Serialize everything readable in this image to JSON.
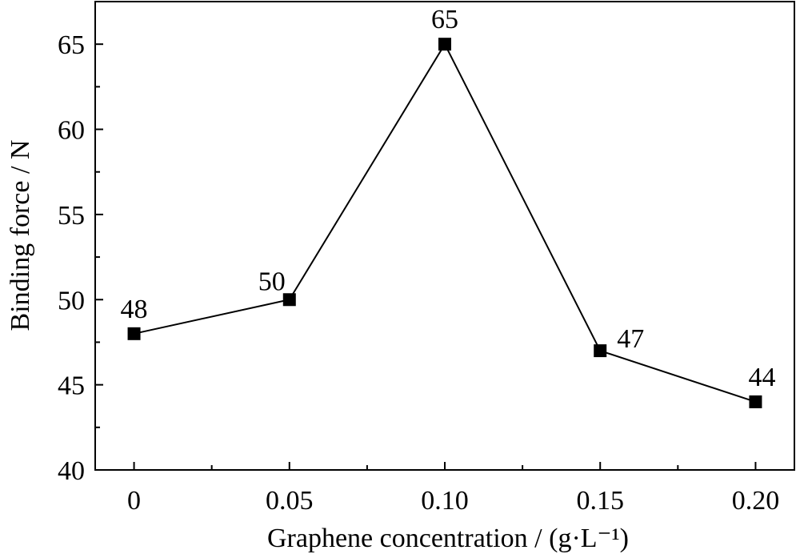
{
  "chart_data": {
    "type": "line",
    "title": "",
    "xlabel": "Graphene concentration / (g·L⁻¹)",
    "ylabel": "Binding force / N",
    "categories": [
      "0",
      "0.05",
      "0.10",
      "0.15",
      "0.20"
    ],
    "x": [
      0,
      0.05,
      0.1,
      0.15,
      0.2
    ],
    "series": [
      {
        "values": [
          48,
          50,
          65,
          47,
          44
        ],
        "data_labels": [
          "48",
          "50",
          "65",
          "47",
          "44"
        ],
        "marker": "square",
        "color": "#000000"
      }
    ],
    "xlim": [
      -0.0125,
      0.2125
    ],
    "ylim": [
      40,
      67.5
    ],
    "yticks": [
      40,
      45,
      50,
      55,
      60,
      65
    ],
    "yticklabels": [
      "40",
      "45",
      "50",
      "55",
      "60",
      "65"
    ],
    "grid": false,
    "legend": "none"
  }
}
